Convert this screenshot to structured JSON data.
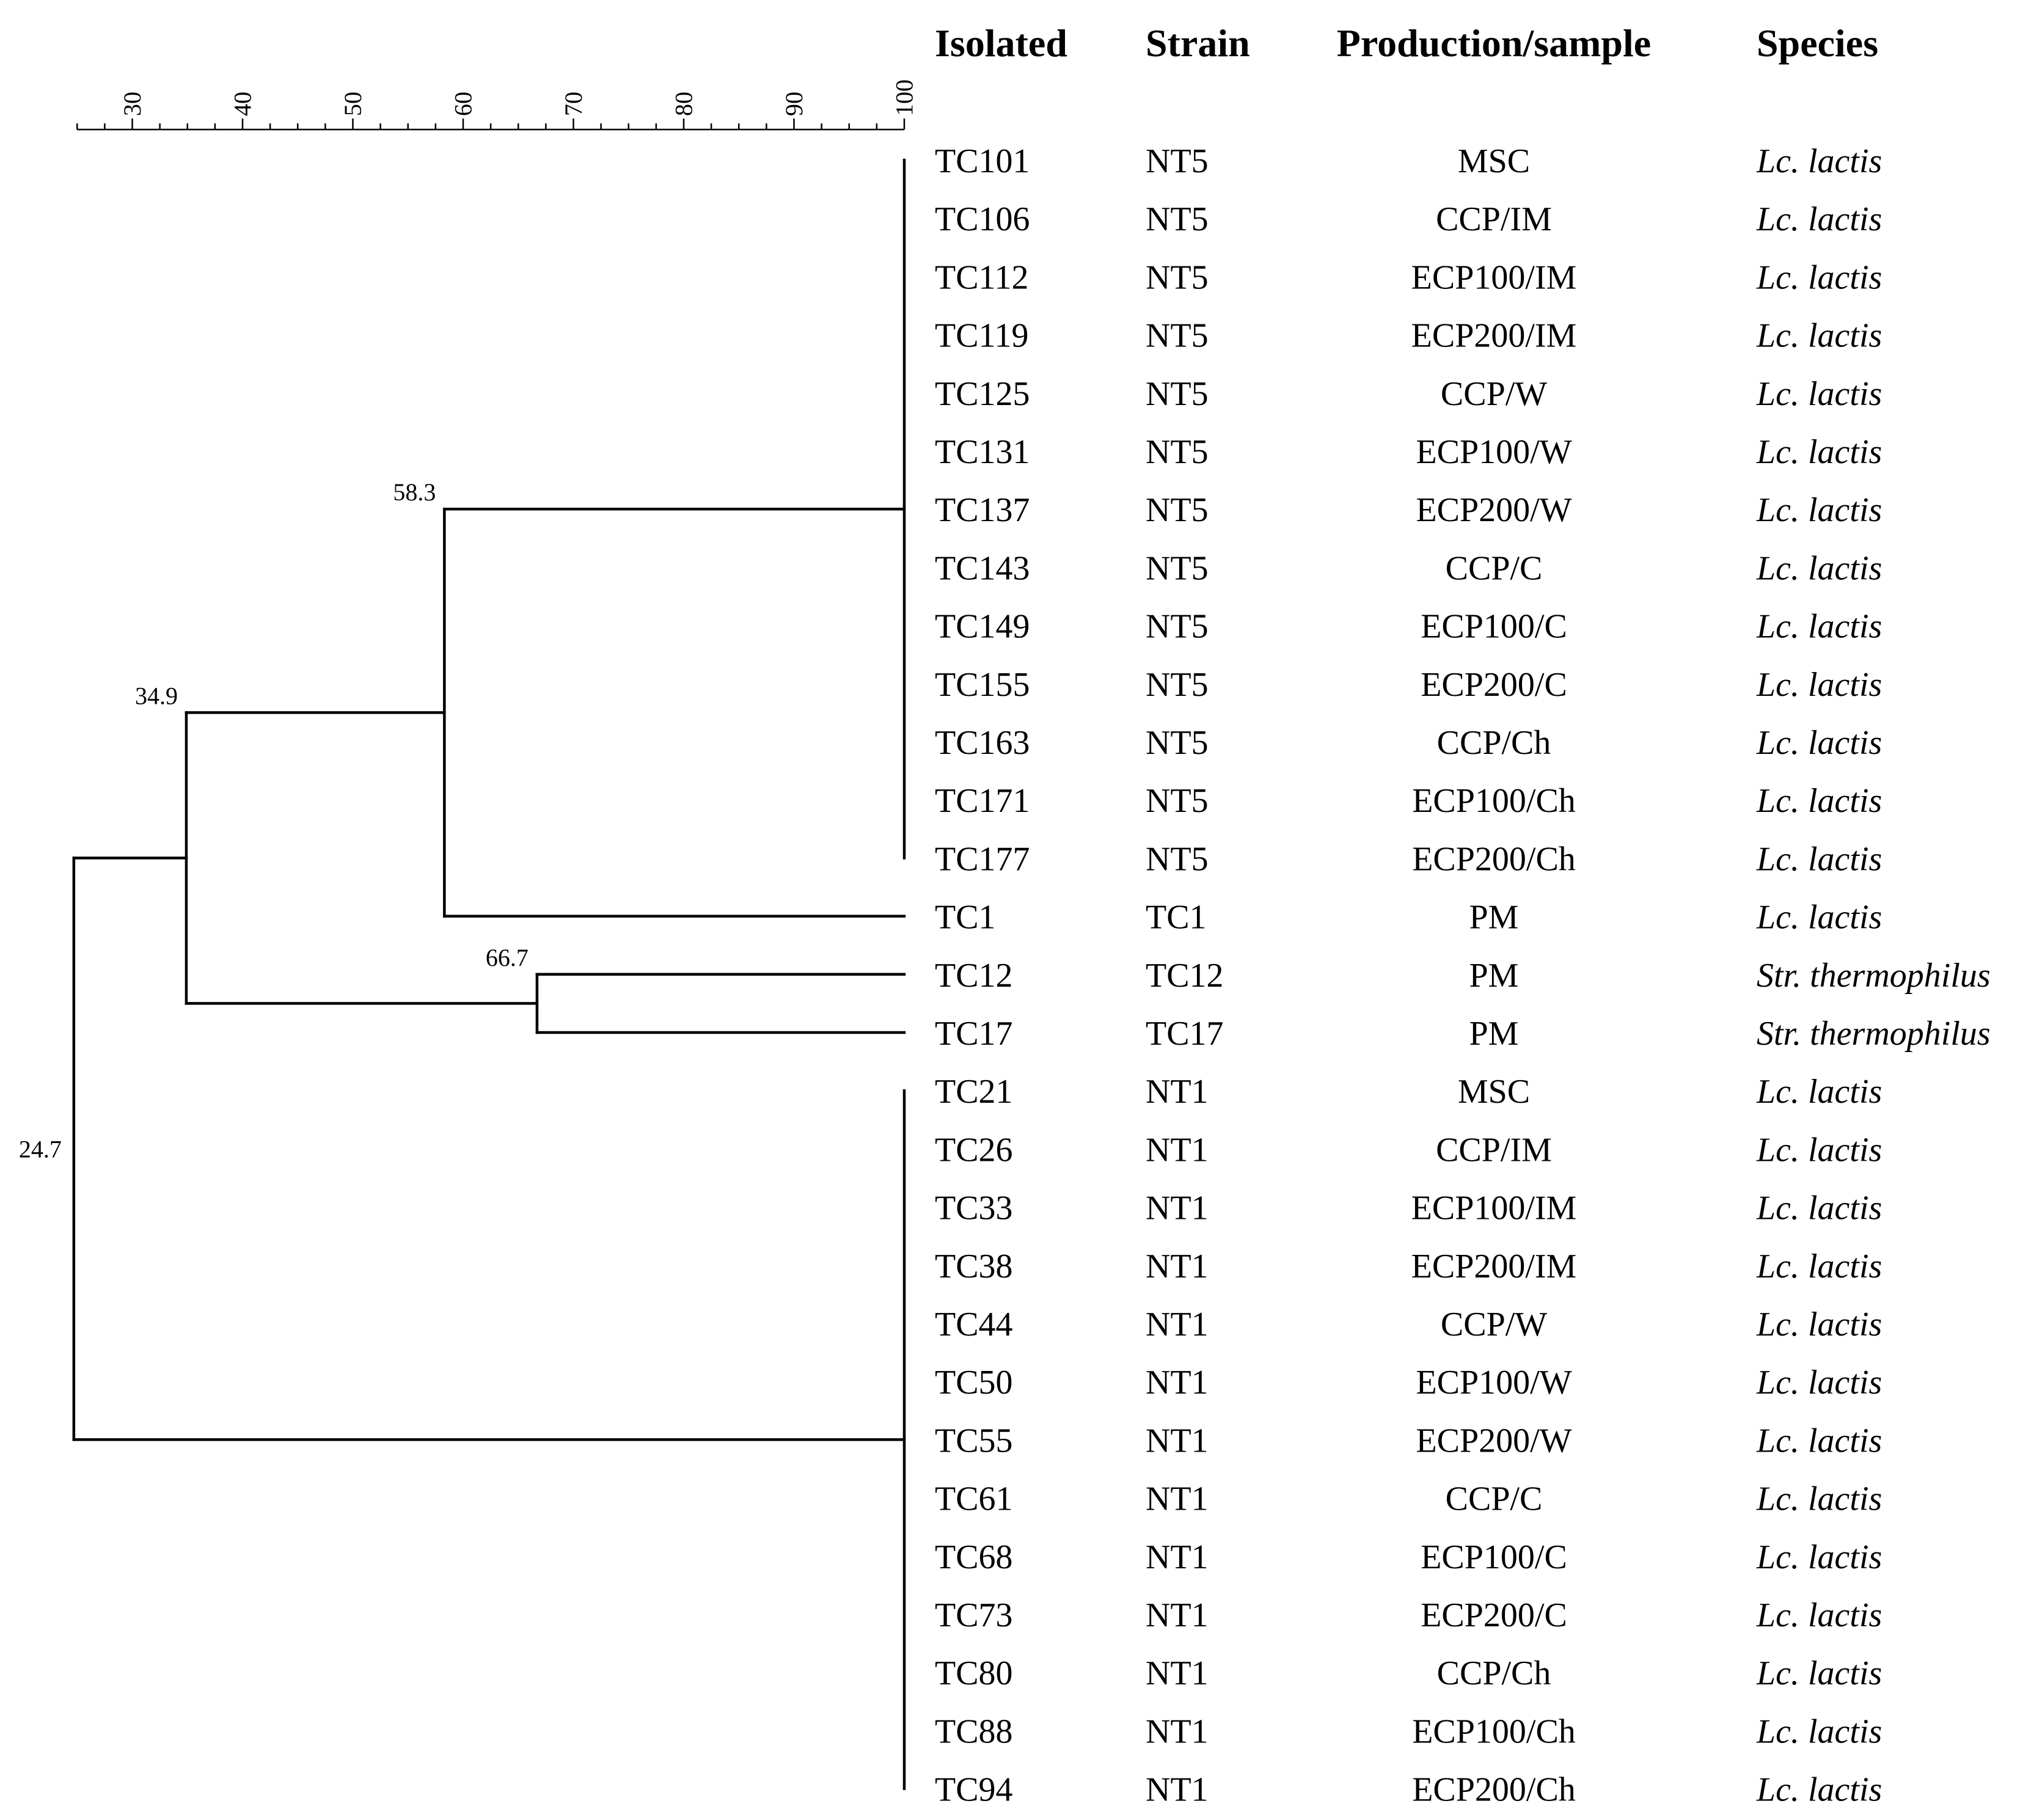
{
  "headers": {
    "isolated": "Isolated",
    "strain": "Strain",
    "production": "Production/sample",
    "species": "Species"
  },
  "axis": {
    "min": 25,
    "max": 100,
    "minor_step": 2.5,
    "tick_labels": [
      "30",
      "40",
      "50",
      "60",
      "70",
      "80",
      "90",
      "100"
    ]
  },
  "rows": [
    {
      "isolated": "TC101",
      "strain": "NT5",
      "production": "MSC",
      "species": "Lc. lactis"
    },
    {
      "isolated": "TC106",
      "strain": "NT5",
      "production": "CCP/IM",
      "species": "Lc. lactis"
    },
    {
      "isolated": "TC112",
      "strain": "NT5",
      "production": "ECP100/IM",
      "species": "Lc. lactis"
    },
    {
      "isolated": "TC119",
      "strain": "NT5",
      "production": "ECP200/IM",
      "species": "Lc. lactis"
    },
    {
      "isolated": "TC125",
      "strain": "NT5",
      "production": "CCP/W",
      "species": "Lc. lactis"
    },
    {
      "isolated": "TC131",
      "strain": "NT5",
      "production": "ECP100/W",
      "species": "Lc. lactis"
    },
    {
      "isolated": "TC137",
      "strain": "NT5",
      "production": "ECP200/W",
      "species": "Lc. lactis"
    },
    {
      "isolated": "TC143",
      "strain": "NT5",
      "production": "CCP/C",
      "species": "Lc. lactis"
    },
    {
      "isolated": "TC149",
      "strain": "NT5",
      "production": "ECP100/C",
      "species": "Lc. lactis"
    },
    {
      "isolated": "TC155",
      "strain": "NT5",
      "production": "ECP200/C",
      "species": "Lc. lactis"
    },
    {
      "isolated": "TC163",
      "strain": "NT5",
      "production": "CCP/Ch",
      "species": "Lc. lactis"
    },
    {
      "isolated": "TC171",
      "strain": "NT5",
      "production": "ECP100/Ch",
      "species": "Lc. lactis"
    },
    {
      "isolated": "TC177",
      "strain": "NT5",
      "production": "ECP200/Ch",
      "species": "Lc. lactis"
    },
    {
      "isolated": "TC1",
      "strain": "TC1",
      "production": "PM",
      "species": "Lc. lactis"
    },
    {
      "isolated": "TC12",
      "strain": "TC12",
      "production": "PM",
      "species": "Str. thermophilus"
    },
    {
      "isolated": "TC17",
      "strain": "TC17",
      "production": "PM",
      "species": "Str. thermophilus"
    },
    {
      "isolated": "TC21",
      "strain": "NT1",
      "production": "MSC",
      "species": "Lc. lactis"
    },
    {
      "isolated": "TC26",
      "strain": "NT1",
      "production": "CCP/IM",
      "species": "Lc. lactis"
    },
    {
      "isolated": "TC33",
      "strain": "NT1",
      "production": "ECP100/IM",
      "species": "Lc. lactis"
    },
    {
      "isolated": "TC38",
      "strain": "NT1",
      "production": "ECP200/IM",
      "species": "Lc. lactis"
    },
    {
      "isolated": "TC44",
      "strain": "NT1",
      "production": "CCP/W",
      "species": "Lc. lactis"
    },
    {
      "isolated": "TC50",
      "strain": "NT1",
      "production": "ECP100/W",
      "species": "Lc. lactis"
    },
    {
      "isolated": "TC55",
      "strain": "NT1",
      "production": "ECP200/W",
      "species": "Lc. lactis"
    },
    {
      "isolated": "TC61",
      "strain": "NT1",
      "production": "CCP/C",
      "species": "Lc. lactis"
    },
    {
      "isolated": "TC68",
      "strain": "NT1",
      "production": "ECP100/C",
      "species": "Lc. lactis"
    },
    {
      "isolated": "TC73",
      "strain": "NT1",
      "production": "ECP200/C",
      "species": "Lc. lactis"
    },
    {
      "isolated": "TC80",
      "strain": "NT1",
      "production": "CCP/Ch",
      "species": "Lc. lactis"
    },
    {
      "isolated": "TC88",
      "strain": "NT1",
      "production": "ECP100/Ch",
      "species": "Lc. lactis"
    },
    {
      "isolated": "TC94",
      "strain": "NT1",
      "production": "ECP200/Ch",
      "species": "Lc. lactis"
    }
  ],
  "tree": {
    "clusters": [
      {
        "id": "nt5",
        "from_row": 0,
        "to_row": 12
      },
      {
        "id": "nt1",
        "from_row": 16,
        "to_row": 28
      }
    ],
    "nodes": [
      {
        "id": "n58",
        "similarity": 58.3,
        "label": "58.3",
        "children": [
          "cluster:nt5",
          "row:13"
        ]
      },
      {
        "id": "n67",
        "similarity": 66.7,
        "label": "66.7",
        "children": [
          "row:14",
          "row:15"
        ]
      },
      {
        "id": "n35",
        "similarity": 34.9,
        "label": "34.9",
        "children": [
          "node:n58",
          "node:n67"
        ]
      },
      {
        "id": "n25",
        "similarity": 24.7,
        "label": "24.7",
        "children": [
          "node:n35",
          "cluster:nt1"
        ]
      }
    ]
  }
}
